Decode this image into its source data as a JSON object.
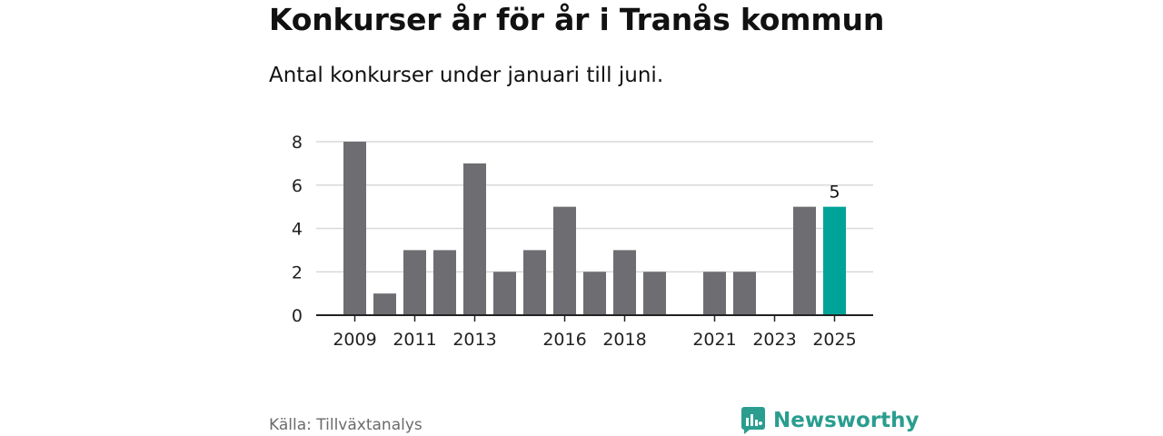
{
  "chart_data": {
    "type": "bar",
    "title": "Konkurser år för år i Tranås kommun",
    "subtitle": "Antal konkurser under januari till juni.",
    "categories": [
      "2009",
      "2010",
      "2011",
      "2012",
      "2013",
      "2014",
      "2015",
      "2016",
      "2017",
      "2018",
      "2019",
      "2020",
      "2021",
      "2022",
      "2023",
      "2024",
      "2025"
    ],
    "values": [
      8,
      1,
      3,
      3,
      7,
      2,
      3,
      5,
      2,
      3,
      2,
      0,
      2,
      2,
      0,
      5,
      5
    ],
    "x_tick_labels": [
      "2009",
      "2011",
      "2013",
      "2016",
      "2018",
      "2021",
      "2023",
      "2025"
    ],
    "y_ticks": [
      0,
      2,
      4,
      6,
      8
    ],
    "ylim": [
      0,
      8
    ],
    "grid": true,
    "highlight_category": "2025",
    "highlight_label": "5",
    "colors": {
      "bar": "#6e6d72",
      "highlight": "#00a398",
      "grid": "#d9d9d9",
      "axis": "#222222"
    }
  },
  "footer": {
    "source": "Källa: Tillväxtanalys",
    "brand": "Newsworthy",
    "brand_icon": "newsworthy-logo-icon",
    "brand_color": "#2a9d8f"
  }
}
